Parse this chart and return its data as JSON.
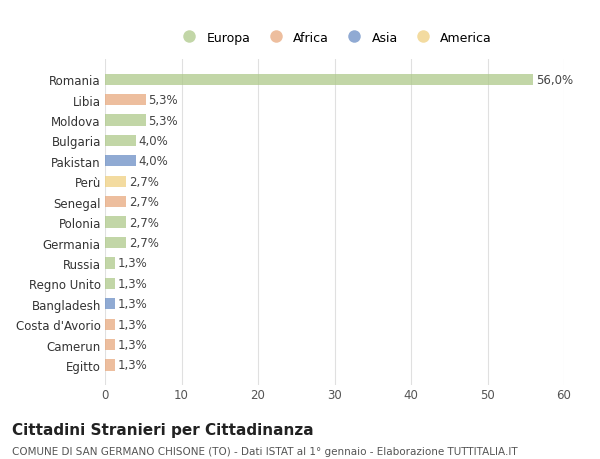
{
  "countries": [
    "Romania",
    "Libia",
    "Moldova",
    "Bulgaria",
    "Pakistan",
    "Perù",
    "Senegal",
    "Polonia",
    "Germania",
    "Russia",
    "Regno Unito",
    "Bangladesh",
    "Costa d'Avorio",
    "Camerun",
    "Egitto"
  ],
  "values": [
    56.0,
    5.3,
    5.3,
    4.0,
    4.0,
    2.7,
    2.7,
    2.7,
    2.7,
    1.3,
    1.3,
    1.3,
    1.3,
    1.3,
    1.3
  ],
  "labels": [
    "56,0%",
    "5,3%",
    "5,3%",
    "4,0%",
    "4,0%",
    "2,7%",
    "2,7%",
    "2,7%",
    "2,7%",
    "1,3%",
    "1,3%",
    "1,3%",
    "1,3%",
    "1,3%",
    "1,3%"
  ],
  "continents": [
    "Europa",
    "Africa",
    "Europa",
    "Europa",
    "Asia",
    "America",
    "Africa",
    "Europa",
    "Europa",
    "Europa",
    "Europa",
    "Asia",
    "Africa",
    "Africa",
    "Africa"
  ],
  "continent_colors": {
    "Europa": "#aec98a",
    "Africa": "#e8a97e",
    "Asia": "#6b8ec5",
    "America": "#f0d080"
  },
  "legend_order": [
    "Europa",
    "Africa",
    "Asia",
    "America"
  ],
  "title": "Cittadini Stranieri per Cittadinanza",
  "subtitle": "COMUNE DI SAN GERMANO CHISONE (TO) - Dati ISTAT al 1° gennaio - Elaborazione TUTTITALIA.IT",
  "xlim": [
    0,
    60
  ],
  "xticks": [
    0,
    10,
    20,
    30,
    40,
    50,
    60
  ],
  "background_color": "#ffffff",
  "grid_color": "#e0e0e0",
  "bar_alpha": 0.75,
  "label_fontsize": 8.5,
  "tick_fontsize": 8.5,
  "title_fontsize": 11,
  "subtitle_fontsize": 7.5,
  "legend_fontsize": 9
}
